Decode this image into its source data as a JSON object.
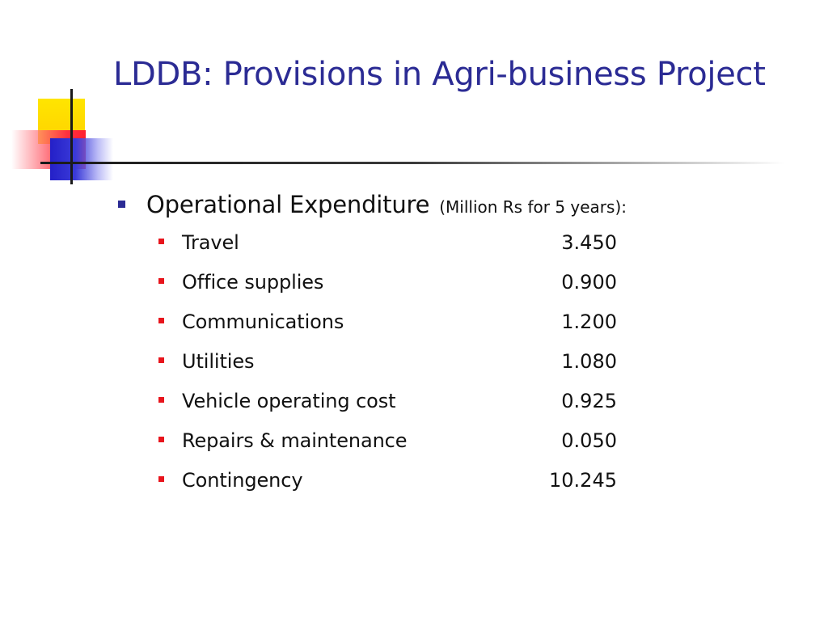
{
  "slide": {
    "title": "LDDB: Provisions in Agri-business Project",
    "bullet": {
      "label": "Operational Expenditure",
      "note": "(Million Rs for 5 years):"
    },
    "items": [
      {
        "label": "Travel",
        "value": "3.450"
      },
      {
        "label": "Office supplies",
        "value": "0.900"
      },
      {
        "label": "Communications",
        "value": "1.200"
      },
      {
        "label": "Utilities",
        "value": "1.080"
      },
      {
        "label": "Vehicle operating cost",
        "value": "0.925"
      },
      {
        "label": "Repairs & maintenance",
        "value": "0.050"
      },
      {
        "label": "Contingency",
        "value": "10.245"
      }
    ]
  },
  "colors": {
    "title": "#2b2b94",
    "level1_bullet": "#2b2b94",
    "level2_bullet": "#e8141c",
    "text": "#111111",
    "deco_yellow": "#ffd200",
    "deco_red": "#ff2030",
    "deco_blue": "#2420c8"
  }
}
